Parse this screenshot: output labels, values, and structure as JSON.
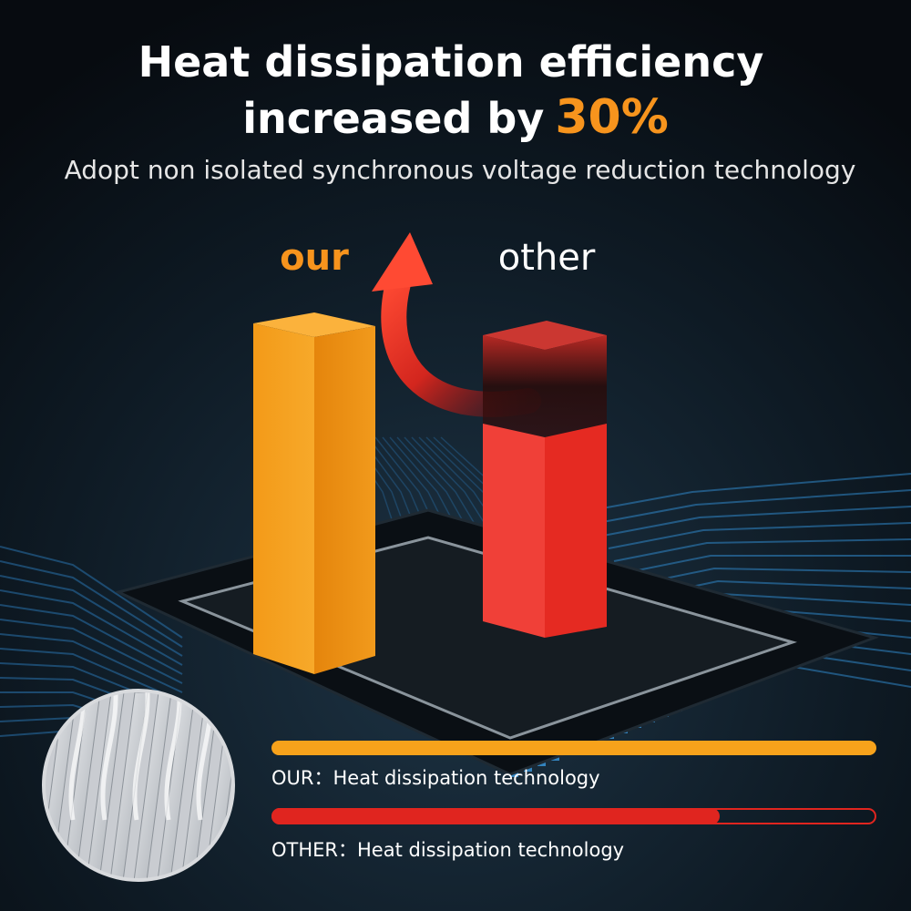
{
  "header": {
    "title": "Heat dissipation efficiency",
    "line2": "increased by",
    "highlight": "30%",
    "subtitle": "Adopt non isolated synchronous voltage reduction technology"
  },
  "labels": {
    "our": "our",
    "other": "other"
  },
  "legend": {
    "our": "OUR：Heat dissipation technology",
    "other": "OTHER：Heat dissipation technology"
  }
}
